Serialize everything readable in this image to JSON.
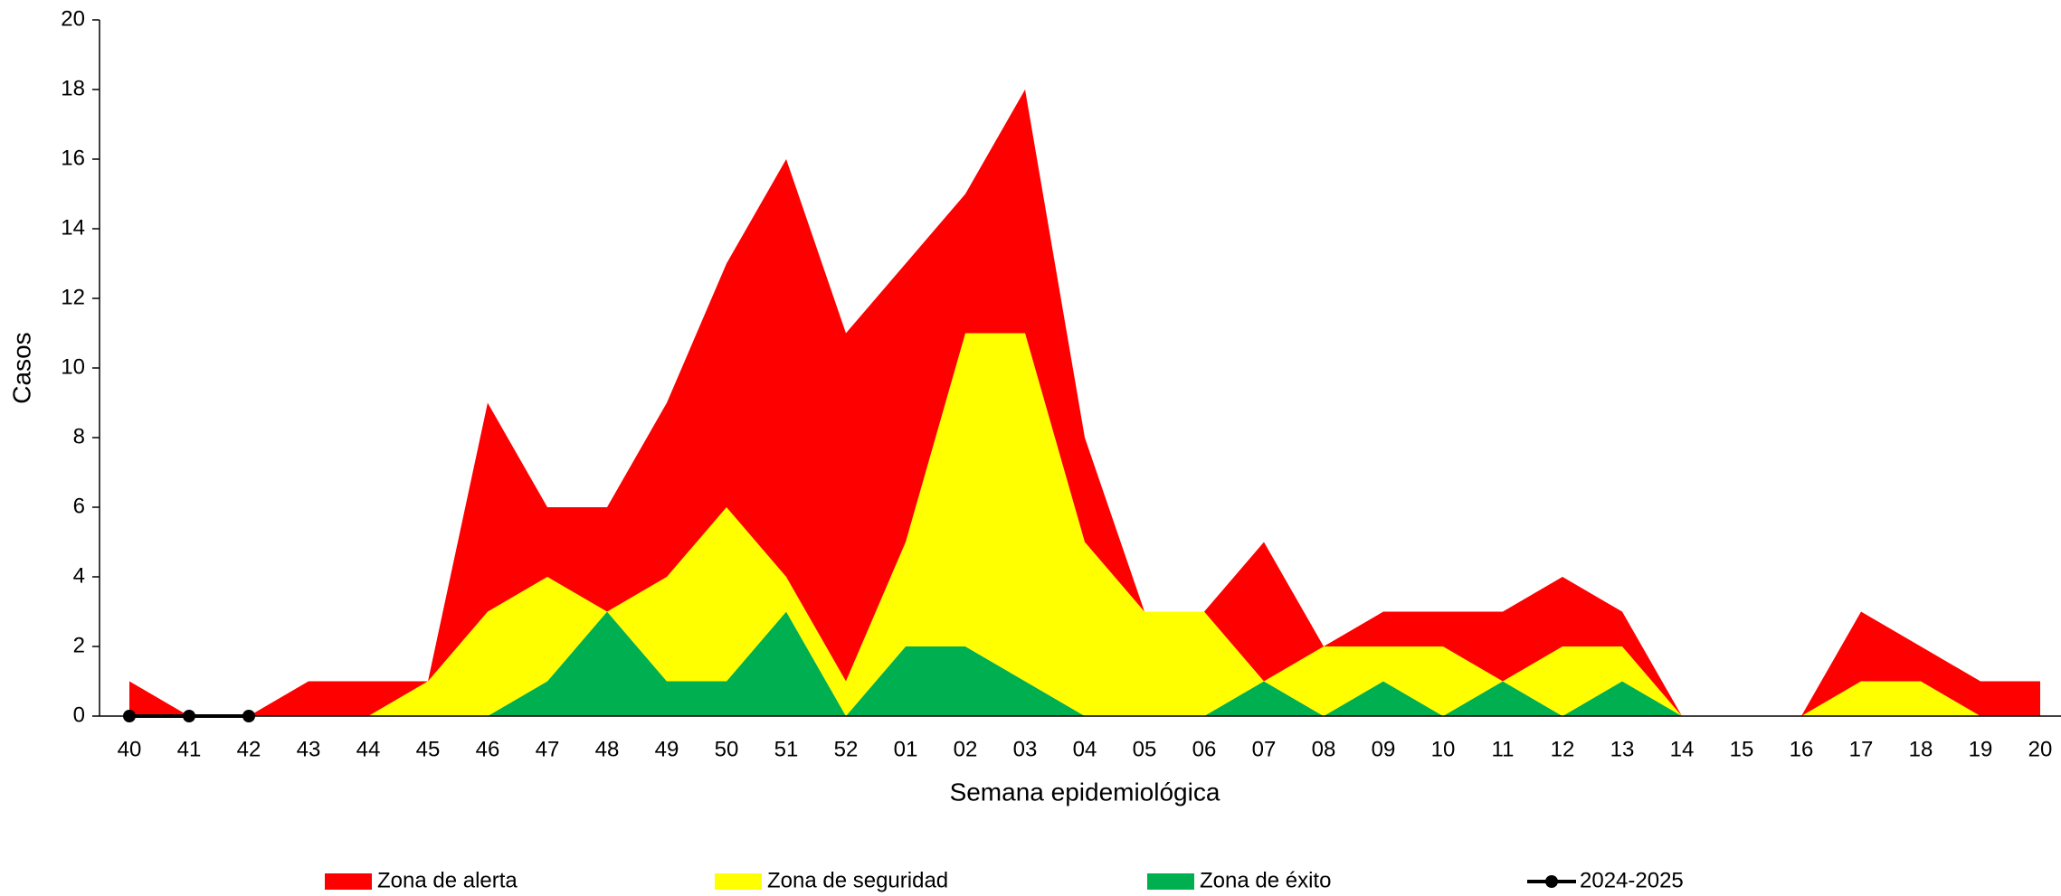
{
  "chart_data": {
    "type": "area",
    "stacked": true,
    "x_label": "Semana epidemiológica",
    "y_label": "Casos",
    "categories": [
      "40",
      "41",
      "42",
      "43",
      "44",
      "45",
      "46",
      "47",
      "48",
      "49",
      "50",
      "51",
      "52",
      "01",
      "02",
      "03",
      "04",
      "05",
      "06",
      "07",
      "08",
      "09",
      "10",
      "11",
      "12",
      "13",
      "14",
      "15",
      "16",
      "17",
      "18",
      "19",
      "20"
    ],
    "ylim": [
      0,
      20
    ],
    "yticks": [
      0,
      2,
      4,
      6,
      8,
      10,
      12,
      14,
      16,
      18,
      20
    ],
    "legend": "bottom",
    "series": [
      {
        "name": "Zona de éxito",
        "color": "#00b050",
        "values": [
          0,
          0,
          0,
          0,
          0,
          0,
          0,
          1,
          3,
          1,
          1,
          3,
          0,
          2,
          2,
          1,
          0,
          0,
          0,
          1,
          0,
          1,
          0,
          1,
          0,
          1,
          0,
          0,
          0,
          0,
          0,
          0,
          0
        ]
      },
      {
        "name": "Zona de seguridad",
        "color": "#ffff00",
        "values": [
          0,
          0,
          0,
          0,
          0,
          1,
          3,
          3,
          0,
          3,
          5,
          1,
          1,
          3,
          9,
          10,
          5,
          3,
          3,
          0,
          2,
          1,
          2,
          0,
          2,
          1,
          0,
          0,
          0,
          1,
          1,
          0,
          0
        ]
      },
      {
        "name": "Zona de alerta",
        "color": "#ff0000",
        "values": [
          1,
          0,
          0,
          1,
          1,
          0,
          6,
          2,
          3,
          5,
          7,
          12,
          10,
          8,
          4,
          7,
          3,
          0,
          0,
          4,
          0,
          1,
          1,
          2,
          2,
          1,
          0,
          0,
          0,
          2,
          1,
          1,
          1
        ]
      },
      {
        "name": "2024-2025",
        "type": "line",
        "color": "#000000",
        "values": [
          0,
          0,
          0,
          null,
          null,
          null,
          null,
          null,
          null,
          null,
          null,
          null,
          null,
          null,
          null,
          null,
          null,
          null,
          null,
          null,
          null,
          null,
          null,
          null,
          null,
          null,
          null,
          null,
          null,
          null,
          null,
          null,
          null
        ]
      }
    ]
  }
}
